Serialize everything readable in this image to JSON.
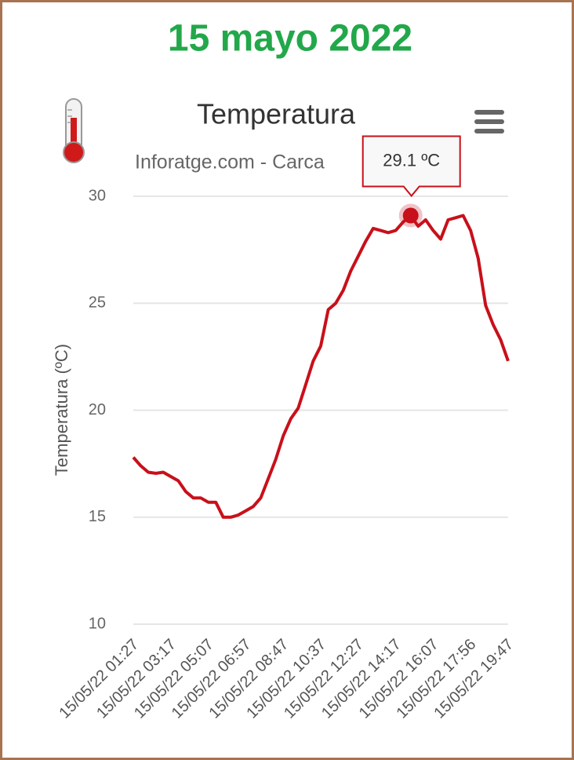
{
  "header": "15 mayo 2022",
  "chart_data": {
    "type": "line",
    "title": "Temperatura",
    "subtitle": "Inforatge.com - Carca",
    "y_label": "Temperatura (ºC)",
    "categories": [
      "15/05/22 01:27",
      null,
      null,
      null,
      null,
      "15/05/22 03:17",
      null,
      null,
      null,
      null,
      "15/05/22 05:07",
      null,
      null,
      null,
      null,
      "15/05/22 06:57",
      null,
      null,
      null,
      null,
      "15/05/22 08:47",
      null,
      null,
      null,
      null,
      "15/05/22 10:37",
      null,
      null,
      null,
      null,
      "15/05/22 12:27",
      null,
      null,
      null,
      null,
      "15/05/22 14:17",
      null,
      null,
      null,
      null,
      "15/05/22 16:07",
      null,
      null,
      null,
      null,
      "15/05/22 17:56",
      null,
      null,
      null,
      null,
      "15/05/22 19:47"
    ],
    "series": [
      {
        "name": "Temperatura",
        "color": "#c8101a",
        "values": [
          17.8,
          17.4,
          17.1,
          17.05,
          17.1,
          16.9,
          16.7,
          16.2,
          15.9,
          15.9,
          15.7,
          15.7,
          15.0,
          15.0,
          15.1,
          15.3,
          15.5,
          15.9,
          16.8,
          17.7,
          18.8,
          19.6,
          20.1,
          21.2,
          22.3,
          23.0,
          24.7,
          25.0,
          25.6,
          26.5,
          27.2,
          27.9,
          28.5,
          28.4,
          28.3,
          28.4,
          28.8,
          29.1,
          28.6,
          28.9,
          28.4,
          28.0,
          28.9,
          29.0,
          29.1,
          28.4,
          27.1,
          24.9,
          24.0,
          23.3,
          22.3
        ],
        "value_labels": [
          null,
          null,
          null,
          null,
          null,
          null,
          null,
          null,
          null,
          null,
          null,
          null,
          null,
          null,
          null,
          null,
          null,
          null,
          null,
          null,
          null,
          null,
          null,
          null,
          null,
          null,
          null,
          null,
          null,
          null,
          null,
          null,
          null,
          null,
          null,
          null,
          null,
          "29.1 ºC",
          null,
          null,
          null,
          null,
          null,
          null,
          null,
          null,
          null,
          null,
          null,
          null,
          null
        ]
      }
    ],
    "ylim": [
      10,
      30
    ],
    "yticks": [
      10,
      15,
      20,
      25,
      30
    ],
    "grid": true
  }
}
